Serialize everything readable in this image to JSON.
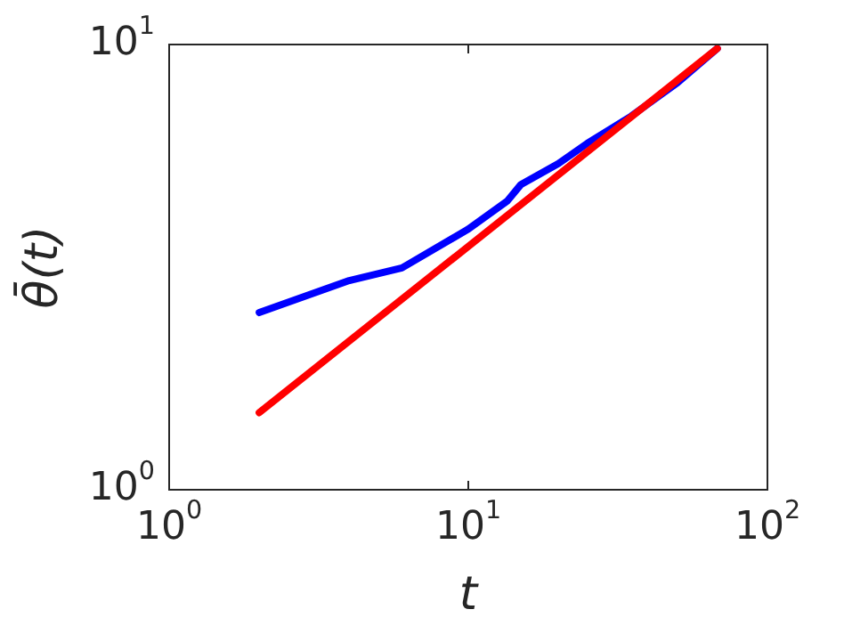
{
  "chart_data": {
    "type": "line",
    "xlabel": "t",
    "ylabel": "θ̄(t)",
    "log": "xy",
    "grid": false,
    "legend": false,
    "marker": "none",
    "xlim": [
      1,
      100
    ],
    "ylim": [
      1,
      10
    ],
    "xticks": [
      {
        "value": 1,
        "label": "10$^{0}$"
      },
      {
        "value": 10,
        "label": "10$^{1}$"
      },
      {
        "value": 100,
        "label": "10$^{2}$"
      }
    ],
    "yticks": [
      {
        "value": 1,
        "label": "10$^{0}$"
      },
      {
        "value": 10,
        "label": "10$^{1}$"
      }
    ],
    "series": [
      {
        "color": "#0000ff",
        "x": [
          2,
          4,
          6,
          10,
          13.5,
          15,
          20,
          25,
          35,
          50,
          68
        ],
        "values": [
          2.5,
          2.95,
          3.15,
          3.85,
          4.45,
          4.85,
          5.4,
          6.0,
          6.9,
          8.2,
          9.8
        ]
      },
      {
        "color": "#ff0000",
        "x": [
          2,
          68
        ],
        "values": [
          1.49,
          9.8
        ]
      }
    ]
  }
}
